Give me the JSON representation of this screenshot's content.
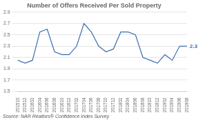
{
  "chart_data": {
    "type": "line",
    "title": "Number of Offers Received Per Sold Property",
    "categories": [
      "201510",
      "201512",
      "201602",
      "201604",
      "201606",
      "201608",
      "201610",
      "201612",
      "201702",
      "201704",
      "201706",
      "201708",
      "201710",
      "201712",
      "201802",
      "201804",
      "201806",
      "201808",
      "201810",
      "201812",
      "201902",
      "201904",
      "201906",
      "201908"
    ],
    "values": [
      2.05,
      2.0,
      2.05,
      2.55,
      2.6,
      2.2,
      2.15,
      2.15,
      2.3,
      2.7,
      2.55,
      2.3,
      2.2,
      2.25,
      2.55,
      2.55,
      2.5,
      2.1,
      2.05,
      2.0,
      2.15,
      2.05,
      2.3,
      2.3
    ],
    "color": "#3c6db0",
    "ylim": [
      1.5,
      2.9
    ],
    "yticks": [
      1.5,
      1.7,
      1.9,
      2.1,
      2.3,
      2.5,
      2.7,
      2.9
    ],
    "grid": true,
    "annotations": [
      {
        "text": "2.3",
        "x": "201908",
        "y": 2.3,
        "color": "#3c6db0"
      },
      {
        "text": "Source: NAR Realtors® Confidence Index Survey"
      }
    ]
  }
}
